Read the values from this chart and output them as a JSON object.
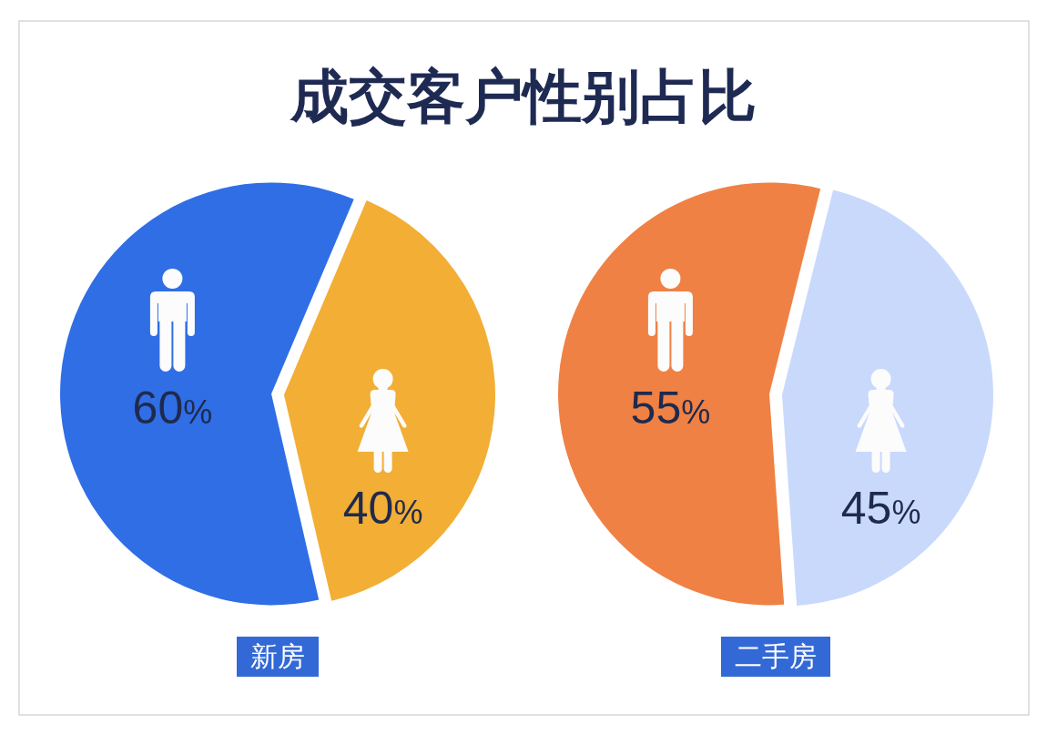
{
  "chart_data": [
    {
      "type": "other",
      "title": "成交客户性别占比"
    },
    {
      "type": "pie",
      "title": "新房",
      "categories": [
        null,
        null
      ],
      "values": [
        60,
        40
      ],
      "colors": [
        "#306ee6",
        "#f2ae35"
      ],
      "value_labels": [
        "60%",
        "40%"
      ]
    },
    {
      "type": "pie",
      "title": "二手房",
      "categories": [
        null,
        null
      ],
      "values": [
        55,
        45
      ],
      "colors": [
        "#f08144",
        "#c9d9fc"
      ],
      "value_labels": [
        "55%",
        "45%"
      ]
    }
  ]
}
